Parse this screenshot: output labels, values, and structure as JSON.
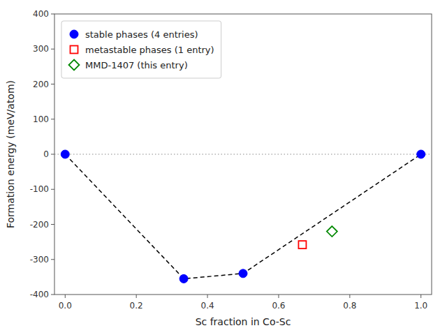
{
  "chart_data": {
    "type": "scatter",
    "x_label": "Sc fraction in Co-Sc",
    "y_label": "Formation energy (meV/atom)",
    "xlim": [
      -0.03,
      1.03
    ],
    "ylim": [
      -400,
      400
    ],
    "xticks": [
      {
        "value": 0.0,
        "label": "0.0"
      },
      0.2,
      0.4,
      0.6,
      0.8,
      {
        "value": 1.0,
        "label": "1.0"
      }
    ],
    "yticks": [
      -400,
      -300,
      -200,
      -100,
      0,
      100,
      200,
      300,
      400
    ],
    "grid": false,
    "legend": "upper-left",
    "series": [
      {
        "type": "line",
        "color": "#000000",
        "line_style": "dashed",
        "x": [
          0.0,
          0.3333,
          0.5,
          1.0
        ],
        "values": [
          0.0,
          -355.0,
          -340.0,
          0.0
        ]
      },
      {
        "type": "hline",
        "color": "#888888",
        "line_style": "dotted",
        "values": [
          0.0
        ]
      },
      {
        "name": "stable phases (4 entries)",
        "type": "scatter",
        "color": "#0000ff",
        "marker": "circle",
        "x": [
          0.0,
          0.3333,
          0.5,
          1.0
        ],
        "values": [
          0.0,
          -355.0,
          -340.0,
          0.0
        ]
      },
      {
        "name": "metastable phases (1 entry)",
        "type": "scatter",
        "color": "#ff0000",
        "marker": "open-square",
        "x": [
          0.6667
        ],
        "values": [
          -258.0
        ]
      },
      {
        "name": "MMD-1407 (this entry)",
        "type": "scatter",
        "color": "#008800",
        "marker": "open-diamond",
        "x": [
          0.75
        ],
        "values": [
          -220.0
        ]
      }
    ]
  }
}
